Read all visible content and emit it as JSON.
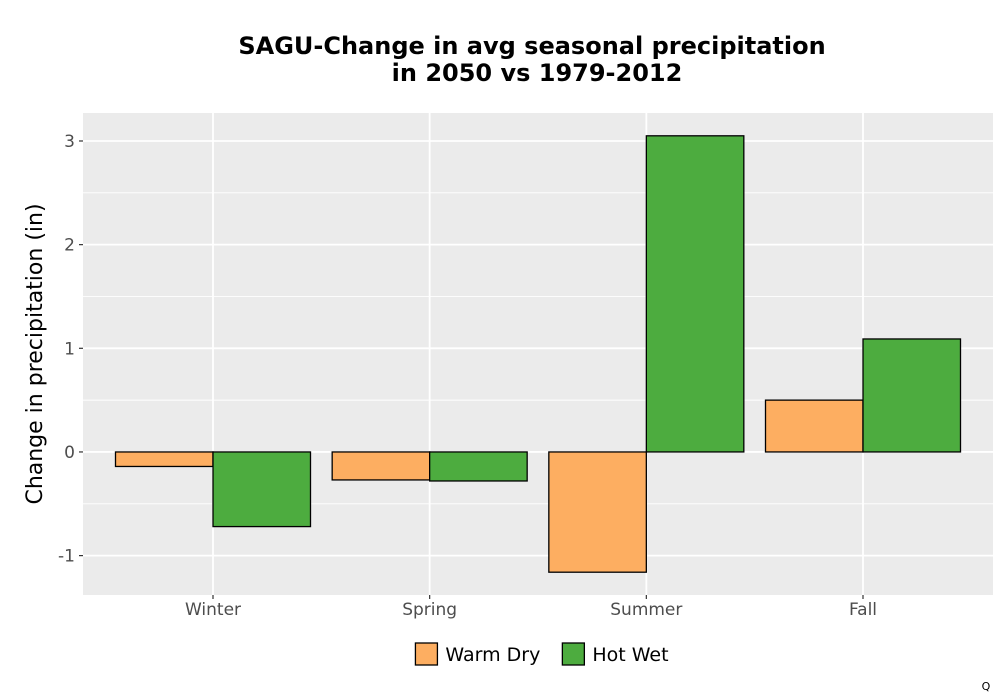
{
  "chart_data": {
    "type": "bar",
    "title": "SAGU-Change in avg seasonal precipitation",
    "subtitle": "in 2050 vs 1979-2012",
    "xlabel": "",
    "ylabel": "Change in precipitation (in)",
    "categories": [
      "Winter",
      "Spring",
      "Summer",
      "Fall"
    ],
    "series": [
      {
        "name": "Warm Dry",
        "color": "#FDAE61",
        "values": [
          -0.14,
          -0.27,
          -1.16,
          0.5
        ]
      },
      {
        "name": "Hot Wet",
        "color": "#4DAC3F",
        "values": [
          -0.72,
          -0.28,
          3.05,
          1.09
        ]
      }
    ],
    "ylim": [
      -1.38,
      3.27
    ],
    "yticks": [
      -1,
      0,
      1,
      2,
      3
    ],
    "ytick_labels": [
      "-1",
      "0",
      "1",
      "2",
      "3"
    ],
    "grid": true,
    "legend_position": "bottom",
    "panel_background": "#EBEBEB",
    "corner_mark": "Q"
  }
}
